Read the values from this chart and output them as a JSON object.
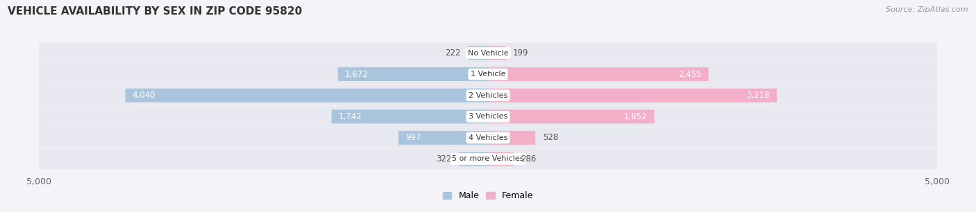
{
  "title": "VEHICLE AVAILABILITY BY SEX IN ZIP CODE 95820",
  "source": "Source: ZipAtlas.com",
  "categories": [
    "No Vehicle",
    "1 Vehicle",
    "2 Vehicles",
    "3 Vehicles",
    "4 Vehicles",
    "5 or more Vehicles"
  ],
  "male_values": [
    222,
    1672,
    4040,
    1742,
    997,
    322
  ],
  "female_values": [
    199,
    2455,
    3218,
    1852,
    528,
    286
  ],
  "x_max": 5000,
  "male_color": "#aac4de",
  "female_color": "#f4afc8",
  "row_bg_color": "#e8e8f0",
  "fig_bg_color": "#f4f4f8",
  "label_dark": "#555555",
  "label_white": "#ffffff",
  "title_fontsize": 11,
  "source_fontsize": 8,
  "tick_fontsize": 9,
  "bar_label_fontsize": 8.5,
  "cat_label_fontsize": 8,
  "legend_fontsize": 9,
  "white_label_threshold": 600
}
